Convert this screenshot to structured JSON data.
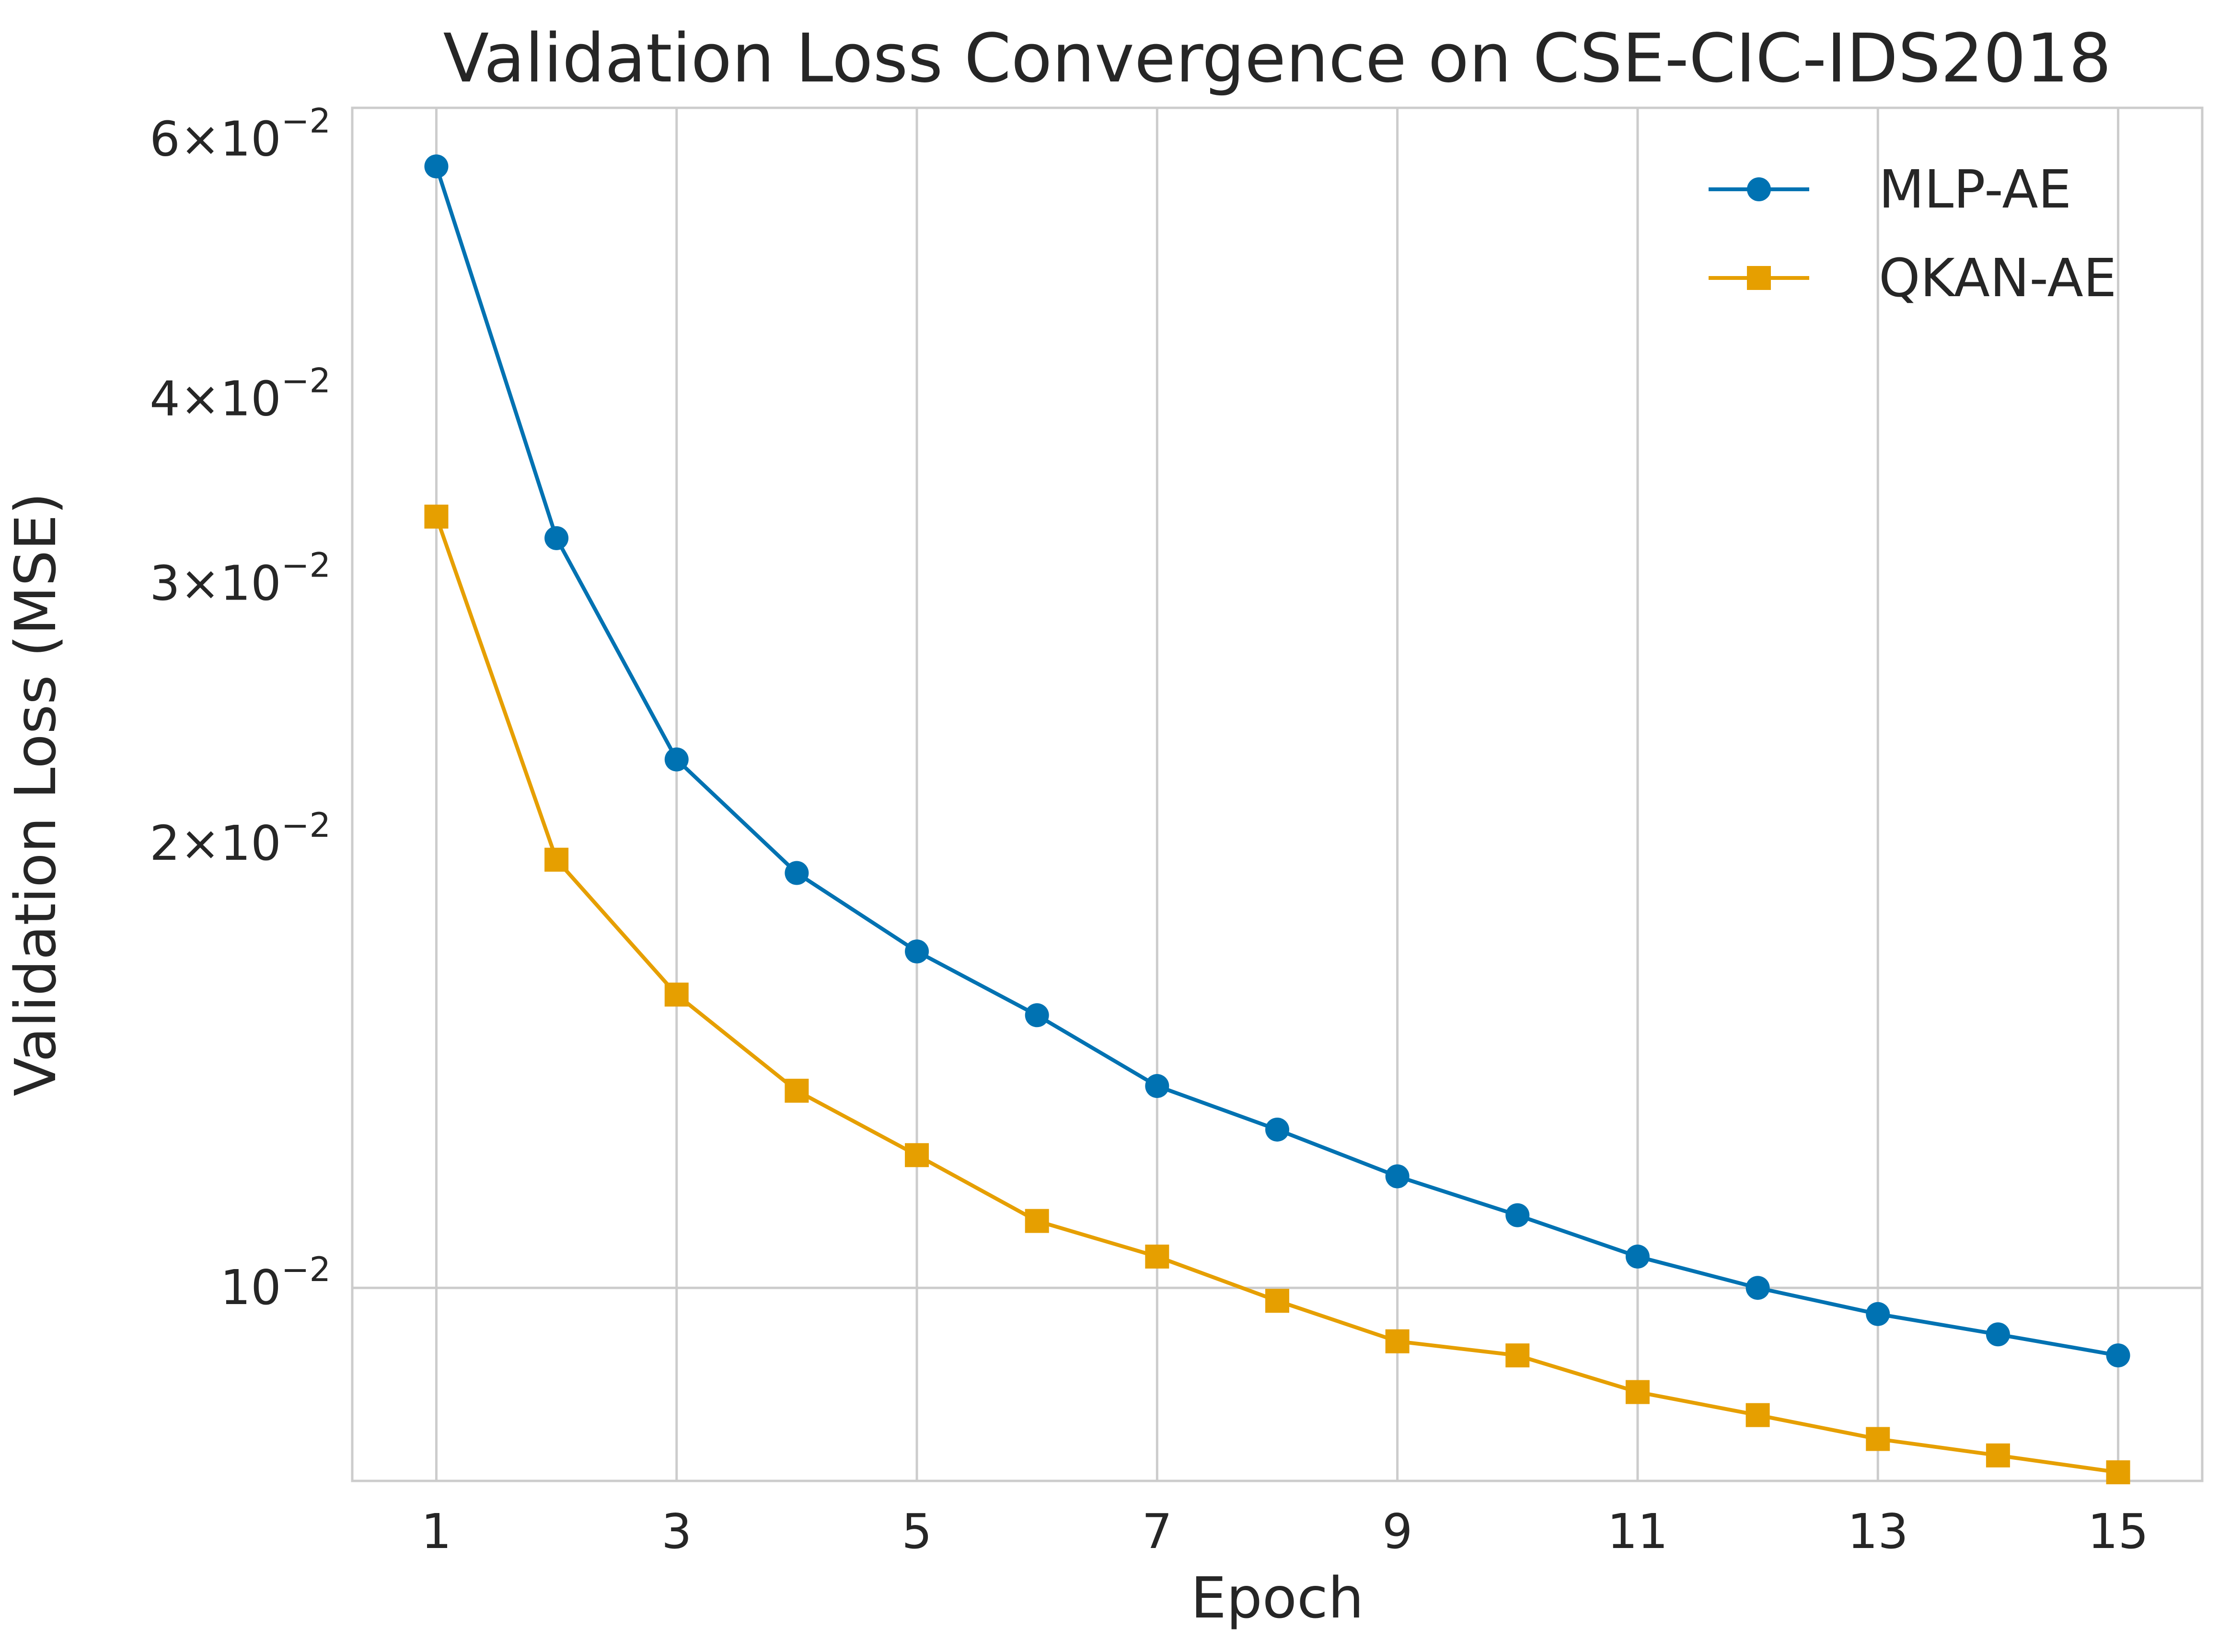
{
  "chart_data": {
    "type": "line",
    "title": "Validation Loss Convergence on CSE-CIC-IDS2018",
    "xlabel": "Epoch",
    "ylabel": "Validation Loss (MSE)",
    "x": [
      1,
      2,
      3,
      4,
      5,
      6,
      7,
      8,
      9,
      10,
      11,
      12,
      13,
      14,
      15
    ],
    "xticks": [
      1,
      3,
      5,
      7,
      9,
      11,
      13,
      15
    ],
    "xlim": [
      0.3,
      15.7
    ],
    "yscale": "log",
    "ylim": [
      0.0074,
      0.063
    ],
    "yticks": [
      {
        "value": 0.06,
        "mantissa": "6",
        "times": "×",
        "base": "10",
        "exp": "−2"
      },
      {
        "value": 0.04,
        "mantissa": "4",
        "times": "×",
        "base": "10",
        "exp": "−2"
      },
      {
        "value": 0.03,
        "mantissa": "3",
        "times": "×",
        "base": "10",
        "exp": "−2"
      },
      {
        "value": 0.02,
        "mantissa": "2",
        "times": "×",
        "base": "10",
        "exp": "−2"
      },
      {
        "value": 0.01,
        "mantissa": "",
        "times": "",
        "base": "10",
        "exp": "−2"
      }
    ],
    "grid": true,
    "legend_position": "top-right",
    "series": [
      {
        "name": "MLP-AE",
        "color": "#0072b2",
        "marker": "circle",
        "values": [
          0.0575,
          0.0322,
          0.0228,
          0.0191,
          0.0169,
          0.0153,
          0.0137,
          0.0128,
          0.0119,
          0.0112,
          0.0105,
          0.01,
          0.0096,
          0.0093,
          0.009
        ]
      },
      {
        "name": "QKAN-AE",
        "color": "#e69f00",
        "marker": "square",
        "values": [
          0.0333,
          0.0195,
          0.0158,
          0.0136,
          0.0123,
          0.0111,
          0.0105,
          0.0098,
          0.0092,
          0.009,
          0.0085,
          0.0082,
          0.0079,
          0.0077,
          0.0075
        ]
      }
    ]
  }
}
